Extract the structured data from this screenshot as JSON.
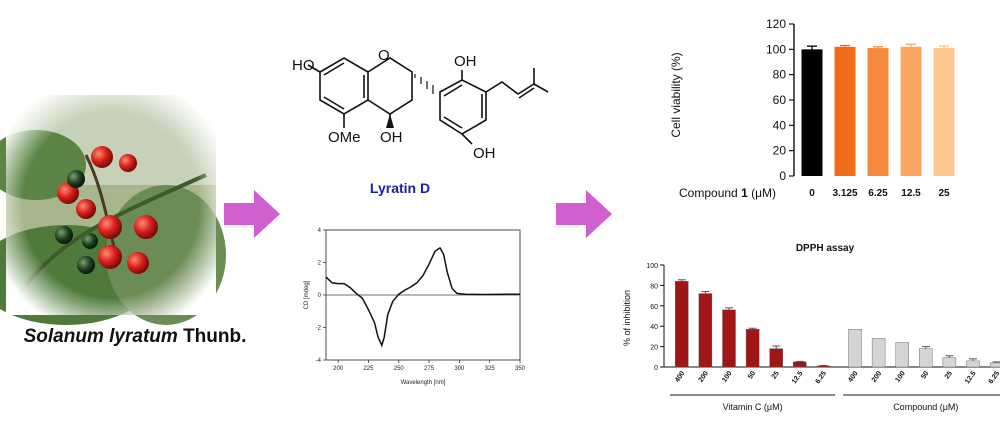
{
  "plant": {
    "caption_genus": "Solanum lyratum",
    "caption_author": "Thunb.",
    "icon": "solanum-berries-photo"
  },
  "compound": {
    "name": "Lyratin D",
    "name_color": "#1a1fa8",
    "labels": {
      "oh_left": "HO",
      "oh_top": "OH",
      "ome": "OMe",
      "oh_mid": "OH",
      "oh_right": "OH"
    }
  },
  "arrow_color": "#d060d0",
  "cd_spectrum": {
    "type": "line",
    "ylabel": "CD [mdeg]",
    "xlabel": "Wavelength [nm]",
    "xlim": [
      190,
      350
    ],
    "ylim": [
      -4,
      4
    ],
    "x_ticks": [
      "200",
      "225",
      "250",
      "275",
      "300",
      "325",
      "350"
    ],
    "y_ticks": [
      "4",
      "2",
      "0",
      "-2",
      "-4"
    ],
    "points": [
      [
        190,
        1.1
      ],
      [
        195,
        0.75
      ],
      [
        200,
        0.7
      ],
      [
        205,
        0.7
      ],
      [
        210,
        0.45
      ],
      [
        215,
        0.1
      ],
      [
        220,
        -0.2
      ],
      [
        225,
        -0.9
      ],
      [
        230,
        -1.7
      ],
      [
        233,
        -2.6
      ],
      [
        236,
        -3.1
      ],
      [
        238,
        -2.6
      ],
      [
        241,
        -1.2
      ],
      [
        245,
        -0.4
      ],
      [
        250,
        0.05
      ],
      [
        255,
        0.3
      ],
      [
        260,
        0.5
      ],
      [
        265,
        0.75
      ],
      [
        270,
        1.2
      ],
      [
        275,
        1.9
      ],
      [
        280,
        2.7
      ],
      [
        284,
        2.9
      ],
      [
        287,
        2.5
      ],
      [
        290,
        1.4
      ],
      [
        294,
        0.4
      ],
      [
        298,
        0.1
      ],
      [
        305,
        0.05
      ],
      [
        320,
        0.03
      ],
      [
        340,
        0.05
      ],
      [
        350,
        0.05
      ]
    ]
  },
  "chart_data": [
    {
      "type": "bar",
      "xlabel_prefix": "Compound ",
      "xlabel_bold": "1",
      "xlabel_suffix": " (μM)",
      "ylabel": "Cell viability (%)",
      "categories": [
        "0",
        "3.125",
        "6.25",
        "12.5",
        "25"
      ],
      "values": [
        100,
        102,
        101,
        102,
        101
      ],
      "errors": [
        2.5,
        1,
        1,
        2,
        1.5
      ],
      "colors": [
        "#000000",
        "#f26b1d",
        "#f58a3c",
        "#f8a860",
        "#fbc98f"
      ],
      "ylim": [
        0,
        120
      ],
      "y_ticks": [
        "0",
        "20",
        "40",
        "60",
        "80",
        "100",
        "120"
      ]
    },
    {
      "type": "bar",
      "title": "DPPH assay",
      "ylabel": "% of inhibition",
      "ylim": [
        0,
        100
      ],
      "y_ticks": [
        "0",
        "20",
        "40",
        "60",
        "80",
        "100"
      ],
      "series": [
        {
          "name": "Vitamin C (μM)",
          "categories": [
            "400",
            "200",
            "100",
            "50",
            "25",
            "12.5",
            "6.25"
          ],
          "values": [
            84,
            72,
            56,
            37,
            18,
            5,
            1
          ],
          "errors": [
            1.5,
            2,
            2,
            1,
            2.5,
            0.5,
            0.5
          ],
          "color": "#a01515"
        },
        {
          "name": "Compound (μM)",
          "categories": [
            "400",
            "200",
            "100",
            "50",
            "25",
            "12.5",
            "6.25"
          ],
          "values": [
            37,
            28,
            24,
            18,
            9,
            6,
            4
          ],
          "errors": [
            0,
            0,
            0,
            2,
            2,
            2,
            1
          ],
          "color": "#d4d4d4"
        }
      ]
    }
  ]
}
